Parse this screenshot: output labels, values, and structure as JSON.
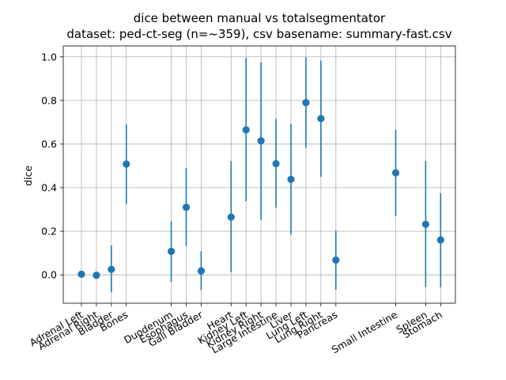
{
  "chart_data": {
    "type": "scatter",
    "title_lines": [
      "dice between manual vs totalsegmentator",
      "dataset: ped-ct-seg (n=~359), csv basename: summary-fast.csv"
    ],
    "xlabel": "",
    "ylabel": "dice",
    "ylim": [
      -0.13,
      1.05
    ],
    "yticks": [
      0.0,
      0.2,
      0.4,
      0.6,
      0.8,
      1.0
    ],
    "ytick_labels": [
      "0.0",
      "0.2",
      "0.4",
      "0.6",
      "0.8",
      "1.0"
    ],
    "grid": true,
    "slots": 25,
    "categories": [
      {
        "label": "Adrenal Left",
        "slot": 0,
        "mean": 0.003,
        "low": 0.0,
        "high": 0.006
      },
      {
        "label": "Adrenal Right",
        "slot": 1,
        "mean": -0.002,
        "low": -0.004,
        "high": 0.002
      },
      {
        "label": "Bladder",
        "slot": 2,
        "mean": 0.025,
        "low": -0.08,
        "high": 0.135
      },
      {
        "label": "Bones",
        "slot": 3,
        "mean": 0.508,
        "low": 0.325,
        "high": 0.69
      },
      {
        "label": "Duodenum",
        "slot": 6,
        "mean": 0.108,
        "low": -0.032,
        "high": 0.245
      },
      {
        "label": "Esophagus",
        "slot": 7,
        "mean": 0.31,
        "low": 0.132,
        "high": 0.49
      },
      {
        "label": "Gall Bladder",
        "slot": 8,
        "mean": 0.018,
        "low": -0.07,
        "high": 0.108
      },
      {
        "label": "Heart",
        "slot": 10,
        "mean": 0.265,
        "low": 0.012,
        "high": 0.522
      },
      {
        "label": "Kidney Left",
        "slot": 11,
        "mean": 0.665,
        "low": 0.338,
        "high": 0.995
      },
      {
        "label": "Kidney Right",
        "slot": 12,
        "mean": 0.615,
        "low": 0.252,
        "high": 0.975
      },
      {
        "label": "Large Intestine",
        "slot": 13,
        "mean": 0.51,
        "low": 0.308,
        "high": 0.715
      },
      {
        "label": "Liver",
        "slot": 14,
        "mean": 0.438,
        "low": 0.185,
        "high": 0.692
      },
      {
        "label": "Lung Left",
        "slot": 15,
        "mean": 0.79,
        "low": 0.583,
        "high": 0.998
      },
      {
        "label": "Lung Right",
        "slot": 16,
        "mean": 0.717,
        "low": 0.45,
        "high": 0.983
      },
      {
        "label": "Pancreas",
        "slot": 17,
        "mean": 0.068,
        "low": -0.068,
        "high": 0.202
      },
      {
        "label": "Small Intestine",
        "slot": 21,
        "mean": 0.468,
        "low": 0.27,
        "high": 0.665
      },
      {
        "label": "Spleen",
        "slot": 23,
        "mean": 0.232,
        "low": -0.055,
        "high": 0.522
      },
      {
        "label": "Stomach",
        "slot": 24,
        "mean": 0.16,
        "low": -0.058,
        "high": 0.375
      }
    ],
    "colors": {
      "marker": "#1f77b4",
      "grid": "#b0b0b0"
    }
  }
}
